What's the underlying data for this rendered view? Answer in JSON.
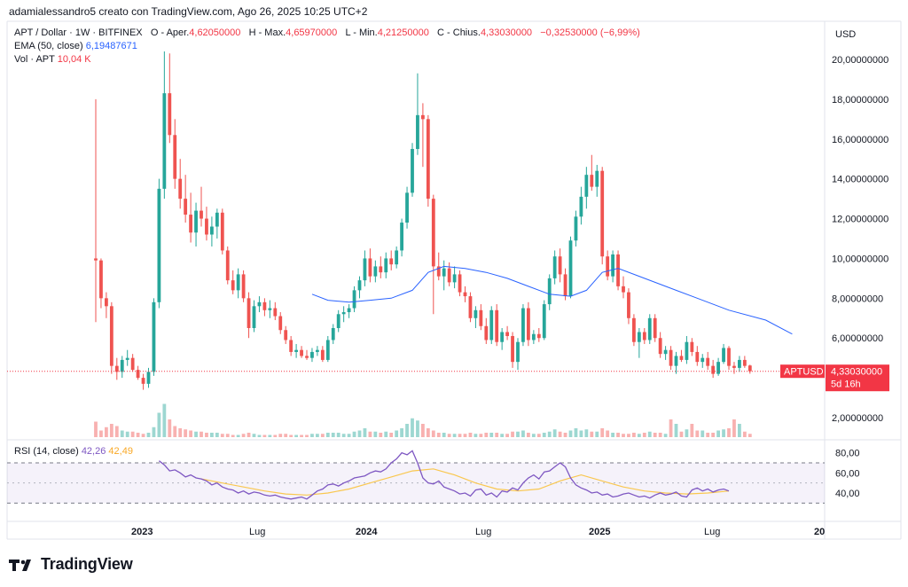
{
  "caption": "adamialessandro5 creato con TradingView.com, Ago 26, 2025 10:25 UTC+2",
  "legend": {
    "symbol": "APT / Dollar · 1W · BITFINEX",
    "open_label": "O - Aper.",
    "open": "4,62050000",
    "high_label": "H - Max.",
    "high": "4,65970000",
    "low_label": "L - Min.",
    "low": "4,21250000",
    "close_label": "C - Chius.",
    "close": "4,33030000",
    "change": "−0,32530000 (−6,99%)",
    "ema_label": "EMA (50, close)",
    "ema_value": "6,19487671",
    "vol_label": "Vol · APT",
    "vol_value": "10,04 K"
  },
  "rsi_legend": {
    "label": "RSI (14, close)",
    "value1": "42,26",
    "value2": "42,49"
  },
  "price_axis": {
    "currency": "USD",
    "ticks": [
      "20,00000000",
      "18,00000000",
      "16,00000000",
      "14,00000000",
      "12,00000000",
      "10,00000000",
      "8,00000000",
      "6,00000000",
      "2,00000000"
    ]
  },
  "rsi_axis": {
    "ticks": [
      "80,00",
      "60,00",
      "40,00"
    ]
  },
  "time_axis": {
    "ticks": [
      "2023",
      "Lug",
      "2024",
      "Lug",
      "2025",
      "Lug",
      "20"
    ]
  },
  "price_badge": {
    "symbol": "APTUSD",
    "price": "4,33030000",
    "countdown": "5d 16h"
  },
  "brand": "TradingView",
  "colors": {
    "up": "#26a69a",
    "down": "#ef5350",
    "ema": "#2962ff",
    "rsi": "#7e57c2",
    "rsi_ma": "#f9c74f"
  },
  "chart_data": {
    "type": "candlestick",
    "price_ylim": [
      1.0,
      21.0
    ],
    "rsi_ylim": [
      25,
      85
    ],
    "rsi_bands": [
      30,
      70
    ],
    "candles": [
      [
        10.0,
        18.0,
        6.8,
        9.9
      ],
      [
        9.9,
        10.0,
        7.5,
        8.0
      ],
      [
        8.0,
        8.3,
        7.0,
        7.6
      ],
      [
        7.6,
        7.8,
        4.2,
        4.6
      ],
      [
        4.6,
        5.0,
        3.9,
        4.3
      ],
      [
        4.3,
        5.1,
        4.0,
        4.9
      ],
      [
        4.9,
        5.4,
        4.6,
        5.0
      ],
      [
        5.0,
        5.2,
        4.3,
        4.4
      ],
      [
        4.4,
        4.6,
        3.9,
        4.0
      ],
      [
        4.0,
        4.2,
        3.4,
        3.7
      ],
      [
        3.7,
        4.5,
        3.5,
        4.3
      ],
      [
        4.3,
        8.0,
        4.1,
        7.8
      ],
      [
        7.8,
        14.0,
        7.5,
        13.5
      ],
      [
        13.5,
        20.4,
        13.0,
        18.3
      ],
      [
        18.3,
        20.3,
        15.8,
        16.2
      ],
      [
        16.2,
        17.0,
        13.5,
        14.0
      ],
      [
        14.0,
        15.0,
        12.5,
        13.0
      ],
      [
        13.0,
        14.2,
        11.8,
        12.2
      ],
      [
        12.2,
        13.3,
        10.8,
        11.3
      ],
      [
        11.3,
        12.8,
        10.6,
        12.4
      ],
      [
        12.4,
        13.6,
        11.6,
        12.0
      ],
      [
        12.0,
        12.6,
        10.9,
        11.2
      ],
      [
        11.2,
        12.1,
        10.6,
        11.6
      ],
      [
        11.6,
        12.5,
        11.0,
        12.3
      ],
      [
        12.3,
        12.5,
        10.2,
        10.4
      ],
      [
        10.4,
        10.6,
        8.7,
        8.9
      ],
      [
        8.9,
        9.4,
        8.2,
        8.4
      ],
      [
        8.4,
        9.5,
        8.0,
        9.2
      ],
      [
        9.2,
        9.4,
        7.8,
        8.0
      ],
      [
        8.0,
        8.3,
        6.0,
        6.5
      ],
      [
        6.5,
        7.9,
        6.3,
        7.6
      ],
      [
        7.6,
        8.1,
        7.3,
        7.8
      ],
      [
        7.8,
        8.0,
        7.1,
        7.4
      ],
      [
        7.4,
        7.9,
        7.0,
        7.5
      ],
      [
        7.5,
        7.8,
        6.9,
        7.1
      ],
      [
        7.1,
        7.3,
        6.2,
        6.4
      ],
      [
        6.4,
        6.6,
        5.7,
        5.9
      ],
      [
        5.9,
        6.1,
        5.1,
        5.3
      ],
      [
        5.3,
        5.7,
        5.0,
        5.4
      ],
      [
        5.4,
        5.6,
        5.0,
        5.1
      ],
      [
        5.1,
        5.4,
        4.9,
        5.0
      ],
      [
        5.0,
        5.5,
        4.8,
        5.3
      ],
      [
        5.3,
        5.6,
        5.1,
        5.4
      ],
      [
        5.4,
        5.6,
        4.8,
        4.9
      ],
      [
        4.9,
        6.1,
        4.8,
        5.9
      ],
      [
        5.9,
        6.7,
        5.7,
        6.5
      ],
      [
        6.5,
        7.4,
        6.3,
        7.2
      ],
      [
        7.2,
        7.6,
        6.8,
        7.3
      ],
      [
        7.3,
        7.7,
        7.0,
        7.5
      ],
      [
        7.5,
        8.6,
        7.3,
        8.4
      ],
      [
        8.4,
        9.1,
        8.0,
        8.9
      ],
      [
        8.9,
        10.4,
        8.6,
        10.0
      ],
      [
        10.0,
        10.5,
        8.8,
        9.1
      ],
      [
        9.1,
        9.9,
        8.8,
        9.6
      ],
      [
        9.6,
        10.1,
        9.0,
        9.3
      ],
      [
        9.3,
        10.3,
        9.0,
        10.0
      ],
      [
        10.0,
        10.4,
        9.4,
        9.7
      ],
      [
        9.7,
        10.6,
        9.5,
        10.4
      ],
      [
        10.4,
        12.0,
        10.1,
        11.8
      ],
      [
        11.8,
        13.6,
        11.5,
        13.3
      ],
      [
        13.3,
        15.8,
        13.1,
        15.5
      ],
      [
        15.5,
        19.3,
        15.2,
        17.2
      ],
      [
        17.2,
        17.8,
        14.6,
        17.0
      ],
      [
        17.0,
        17.2,
        12.6,
        13.0
      ],
      [
        13.0,
        13.2,
        7.2,
        9.6
      ],
      [
        9.6,
        10.3,
        8.9,
        9.1
      ],
      [
        9.1,
        9.9,
        8.4,
        9.5
      ],
      [
        9.5,
        9.8,
        8.6,
        8.8
      ],
      [
        8.8,
        9.6,
        8.5,
        9.2
      ],
      [
        9.2,
        9.4,
        8.1,
        8.3
      ],
      [
        8.3,
        8.6,
        7.8,
        8.1
      ],
      [
        8.1,
        8.3,
        6.8,
        7.0
      ],
      [
        7.0,
        7.6,
        6.5,
        7.4
      ],
      [
        7.4,
        7.7,
        6.4,
        6.6
      ],
      [
        6.6,
        7.0,
        5.7,
        5.9
      ],
      [
        5.9,
        7.6,
        5.7,
        7.4
      ],
      [
        7.4,
        7.7,
        5.6,
        5.8
      ],
      [
        5.8,
        6.5,
        5.4,
        6.3
      ],
      [
        6.3,
        6.6,
        5.9,
        6.1
      ],
      [
        6.1,
        6.3,
        4.5,
        4.8
      ],
      [
        4.8,
        6.0,
        4.4,
        5.8
      ],
      [
        5.8,
        7.7,
        5.6,
        7.5
      ],
      [
        7.5,
        7.8,
        5.6,
        5.9
      ],
      [
        5.9,
        6.4,
        5.7,
        6.2
      ],
      [
        6.2,
        6.5,
        5.8,
        6.0
      ],
      [
        6.0,
        7.9,
        5.9,
        7.7
      ],
      [
        7.7,
        9.2,
        7.4,
        9.0
      ],
      [
        9.0,
        10.4,
        8.7,
        10.1
      ],
      [
        10.1,
        10.5,
        8.8,
        9.2
      ],
      [
        9.2,
        9.5,
        7.9,
        8.1
      ],
      [
        8.1,
        11.1,
        8.0,
        10.9
      ],
      [
        10.9,
        12.4,
        10.6,
        12.1
      ],
      [
        12.1,
        13.6,
        11.7,
        13.1
      ],
      [
        13.1,
        14.6,
        12.5,
        14.2
      ],
      [
        14.2,
        15.2,
        13.4,
        13.6
      ],
      [
        13.6,
        14.7,
        13.1,
        14.4
      ],
      [
        14.4,
        14.6,
        9.7,
        10.1
      ],
      [
        10.1,
        10.4,
        8.9,
        9.1
      ],
      [
        9.1,
        10.4,
        8.8,
        10.2
      ],
      [
        10.2,
        10.4,
        8.4,
        8.6
      ],
      [
        8.6,
        9.1,
        8.0,
        8.3
      ],
      [
        8.3,
        8.5,
        6.7,
        7.0
      ],
      [
        7.0,
        7.2,
        5.6,
        5.8
      ],
      [
        5.8,
        6.5,
        5.0,
        6.3
      ],
      [
        6.3,
        6.5,
        5.7,
        5.9
      ],
      [
        5.9,
        7.2,
        5.7,
        7.0
      ],
      [
        7.0,
        7.2,
        5.8,
        6.0
      ],
      [
        6.0,
        6.3,
        5.0,
        5.2
      ],
      [
        5.2,
        5.6,
        4.9,
        5.4
      ],
      [
        5.4,
        5.6,
        4.4,
        4.6
      ],
      [
        4.6,
        5.3,
        4.2,
        5.1
      ],
      [
        5.1,
        5.4,
        4.8,
        4.9
      ],
      [
        4.9,
        6.1,
        4.7,
        5.8
      ],
      [
        5.8,
        6.0,
        5.1,
        5.3
      ],
      [
        5.3,
        5.6,
        4.6,
        4.8
      ],
      [
        4.8,
        5.2,
        4.5,
        5.0
      ],
      [
        5.0,
        5.3,
        4.4,
        4.6
      ],
      [
        4.6,
        4.9,
        4.0,
        4.2
      ],
      [
        4.2,
        5.0,
        4.1,
        4.8
      ],
      [
        4.8,
        5.7,
        4.7,
        5.5
      ],
      [
        5.5,
        5.6,
        4.4,
        4.6
      ],
      [
        4.6,
        4.8,
        4.2,
        4.5
      ],
      [
        4.5,
        5.1,
        4.3,
        4.9
      ],
      [
        4.9,
        5.1,
        4.5,
        4.6
      ],
      [
        4.62,
        4.66,
        4.21,
        4.33
      ]
    ],
    "volume": [
      14,
      6,
      9,
      12,
      10,
      6,
      5,
      5,
      4,
      3,
      4,
      9,
      22,
      30,
      16,
      10,
      8,
      7,
      6,
      5,
      5,
      4,
      4,
      4,
      3,
      3,
      2,
      2,
      3,
      4,
      3,
      2,
      2,
      2,
      2,
      3,
      3,
      2,
      2,
      2,
      2,
      3,
      3,
      3,
      4,
      4,
      4,
      3,
      3,
      5,
      6,
      8,
      5,
      5,
      4,
      5,
      4,
      6,
      8,
      12,
      17,
      15,
      12,
      8,
      6,
      4,
      4,
      3,
      3,
      3,
      3,
      4,
      3,
      3,
      4,
      4,
      4,
      3,
      3,
      5,
      5,
      6,
      4,
      3,
      3,
      4,
      5,
      7,
      5,
      4,
      6,
      8,
      6,
      7,
      5,
      5,
      8,
      6,
      4,
      4,
      3,
      3,
      4,
      3,
      4,
      5,
      4,
      4,
      3,
      16,
      12,
      5,
      7,
      12,
      6,
      6,
      4,
      4,
      6,
      7,
      8,
      16,
      12,
      5,
      3
    ],
    "ema50": [
      [
        41,
        8.2
      ],
      [
        44,
        7.9
      ],
      [
        48,
        7.8
      ],
      [
        52,
        7.9
      ],
      [
        56,
        8.0
      ],
      [
        60,
        8.4
      ],
      [
        63,
        9.3
      ],
      [
        66,
        9.6
      ],
      [
        70,
        9.5
      ],
      [
        74,
        9.3
      ],
      [
        78,
        9.0
      ],
      [
        82,
        8.6
      ],
      [
        86,
        8.2
      ],
      [
        90,
        8.1
      ],
      [
        93,
        8.4
      ],
      [
        96,
        9.3
      ],
      [
        99,
        9.5
      ],
      [
        103,
        9.1
      ],
      [
        108,
        8.6
      ],
      [
        114,
        8.0
      ],
      [
        120,
        7.4
      ],
      [
        127,
        6.9
      ],
      [
        132,
        6.2
      ]
    ],
    "rsi": [
      [
        12,
        72
      ],
      [
        13,
        68
      ],
      [
        14,
        62
      ],
      [
        15,
        63
      ],
      [
        16,
        60
      ],
      [
        17,
        56
      ],
      [
        18,
        58
      ],
      [
        19,
        55
      ],
      [
        20,
        54
      ],
      [
        21,
        52
      ],
      [
        22,
        48
      ],
      [
        23,
        50
      ],
      [
        24,
        46
      ],
      [
        25,
        44
      ],
      [
        26,
        43
      ],
      [
        27,
        40
      ],
      [
        28,
        42
      ],
      [
        29,
        39
      ],
      [
        30,
        41
      ],
      [
        31,
        40
      ],
      [
        32,
        38
      ],
      [
        33,
        37
      ],
      [
        34,
        38
      ],
      [
        35,
        36
      ],
      [
        36,
        35
      ],
      [
        37,
        34
      ],
      [
        38,
        35
      ],
      [
        39,
        36
      ],
      [
        40,
        34
      ],
      [
        41,
        38
      ],
      [
        42,
        42
      ],
      [
        43,
        44
      ],
      [
        44,
        48
      ],
      [
        45,
        49
      ],
      [
        46,
        47
      ],
      [
        47,
        50
      ],
      [
        48,
        52
      ],
      [
        49,
        55
      ],
      [
        50,
        56
      ],
      [
        51,
        57
      ],
      [
        52,
        60
      ],
      [
        53,
        62
      ],
      [
        54,
        61
      ],
      [
        55,
        64
      ],
      [
        56,
        70
      ],
      [
        57,
        74
      ],
      [
        58,
        80
      ],
      [
        59,
        78
      ],
      [
        60,
        82
      ],
      [
        61,
        70
      ],
      [
        62,
        55
      ],
      [
        63,
        50
      ],
      [
        64,
        49
      ],
      [
        65,
        52
      ],
      [
        66,
        46
      ],
      [
        67,
        44
      ],
      [
        68,
        42
      ],
      [
        69,
        39
      ],
      [
        70,
        40
      ],
      [
        71,
        37
      ],
      [
        72,
        43
      ],
      [
        73,
        44
      ],
      [
        74,
        38
      ],
      [
        75,
        40
      ],
      [
        76,
        36
      ],
      [
        77,
        42
      ],
      [
        78,
        41
      ],
      [
        79,
        45
      ],
      [
        80,
        43
      ],
      [
        81,
        50
      ],
      [
        82,
        55
      ],
      [
        83,
        58
      ],
      [
        84,
        54
      ],
      [
        85,
        61
      ],
      [
        86,
        62
      ],
      [
        87,
        66
      ],
      [
        88,
        70
      ],
      [
        89,
        66
      ],
      [
        90,
        55
      ],
      [
        91,
        48
      ],
      [
        92,
        45
      ],
      [
        93,
        43
      ],
      [
        94,
        40
      ],
      [
        95,
        41
      ],
      [
        96,
        38
      ],
      [
        97,
        39
      ],
      [
        98,
        36
      ],
      [
        99,
        37
      ],
      [
        100,
        39
      ],
      [
        101,
        40
      ],
      [
        102,
        38
      ],
      [
        103,
        36
      ],
      [
        104,
        37
      ],
      [
        105,
        35
      ],
      [
        106,
        38
      ],
      [
        107,
        40
      ],
      [
        108,
        38
      ],
      [
        109,
        39
      ],
      [
        110,
        41
      ],
      [
        111,
        37
      ],
      [
        112,
        36
      ],
      [
        113,
        43
      ],
      [
        114,
        45
      ],
      [
        115,
        42
      ],
      [
        116,
        44
      ],
      [
        117,
        41
      ],
      [
        118,
        43
      ],
      [
        119,
        44
      ],
      [
        120,
        42
      ]
    ],
    "rsi_ma": [
      [
        20,
        54
      ],
      [
        24,
        50
      ],
      [
        28,
        46
      ],
      [
        32,
        42
      ],
      [
        36,
        39
      ],
      [
        40,
        38
      ],
      [
        44,
        40
      ],
      [
        48,
        44
      ],
      [
        52,
        50
      ],
      [
        56,
        56
      ],
      [
        60,
        62
      ],
      [
        64,
        64
      ],
      [
        68,
        58
      ],
      [
        72,
        50
      ],
      [
        76,
        44
      ],
      [
        80,
        42
      ],
      [
        84,
        44
      ],
      [
        88,
        52
      ],
      [
        92,
        58
      ],
      [
        96,
        52
      ],
      [
        100,
        46
      ],
      [
        104,
        42
      ],
      [
        108,
        40
      ],
      [
        112,
        39
      ],
      [
        116,
        40
      ],
      [
        120,
        42
      ]
    ]
  }
}
